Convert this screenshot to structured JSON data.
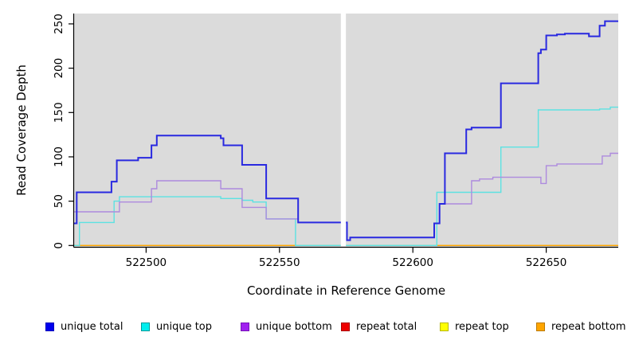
{
  "chart_data": {
    "type": "line",
    "subtype": "step-after-coverage-plot",
    "title": "",
    "xlabel": "Coordinate in Reference Genome",
    "ylabel": "Read Coverage Depth",
    "x_ticks": [
      522500,
      522550,
      522600,
      522650
    ],
    "y_ticks": [
      0,
      50,
      100,
      150,
      200,
      250
    ],
    "xlim": [
      522473,
      522677
    ],
    "ylim": [
      0,
      262
    ],
    "grid": false,
    "panel_bg": "#dbdbdb",
    "masked_region": [
      522573.0,
      522574.9
    ],
    "legend_position": "bottom",
    "draw_order": [
      3,
      4,
      5,
      1,
      2,
      0
    ],
    "series": [
      {
        "name": "unique total",
        "color": "#2929e0",
        "width": 2,
        "points": [
          [
            522473,
            25
          ],
          [
            522474,
            60
          ],
          [
            522487,
            72
          ],
          [
            522489,
            96
          ],
          [
            522497,
            99
          ],
          [
            522502,
            113
          ],
          [
            522504,
            124
          ],
          [
            522528,
            121
          ],
          [
            522529,
            113
          ],
          [
            522536,
            91
          ],
          [
            522545,
            53
          ],
          [
            522557,
            26
          ],
          [
            522575.3,
            6
          ],
          [
            522576.5,
            9
          ],
          [
            522608,
            25
          ],
          [
            522610,
            47
          ],
          [
            522612,
            104
          ],
          [
            522620,
            131
          ],
          [
            522622,
            133
          ],
          [
            522633,
            183
          ],
          [
            522647,
            217
          ],
          [
            522648,
            221
          ],
          [
            522650,
            237
          ],
          [
            522654,
            238
          ],
          [
            522657,
            239
          ],
          [
            522666,
            236
          ],
          [
            522670,
            248
          ],
          [
            522672,
            253
          ]
        ]
      },
      {
        "name": "unique top",
        "color": "#5ce2e2",
        "width": 1.4,
        "points": [
          [
            522473,
            0
          ],
          [
            522475,
            26
          ],
          [
            522488,
            50
          ],
          [
            522490,
            55
          ],
          [
            522528,
            53
          ],
          [
            522536,
            51
          ],
          [
            522540,
            49
          ],
          [
            522545,
            30
          ],
          [
            522556,
            0
          ],
          [
            522609,
            60
          ],
          [
            522633,
            111
          ],
          [
            522647,
            153
          ],
          [
            522670,
            154
          ],
          [
            522674,
            156
          ]
        ]
      },
      {
        "name": "unique bottom",
        "color": "#ad8ade",
        "width": 1.4,
        "points": [
          [
            522473,
            38
          ],
          [
            522490,
            49
          ],
          [
            522502,
            64
          ],
          [
            522504,
            73
          ],
          [
            522528,
            64
          ],
          [
            522536,
            43
          ],
          [
            522545,
            30
          ],
          [
            522557,
            26
          ],
          [
            522575.3,
            6
          ],
          [
            522576.5,
            9
          ],
          [
            522608,
            25
          ],
          [
            522610,
            47
          ],
          [
            522622,
            73
          ],
          [
            522625,
            75
          ],
          [
            522630,
            77
          ],
          [
            522648,
            70
          ],
          [
            522650,
            90
          ],
          [
            522654,
            92
          ],
          [
            522671,
            101
          ],
          [
            522674,
            104
          ]
        ]
      },
      {
        "name": "repeat total",
        "color": "#dd2222",
        "width": 1.4,
        "points": [
          [
            522473,
            0
          ]
        ]
      },
      {
        "name": "repeat top",
        "color": "#eded4f",
        "width": 1.4,
        "points": [
          [
            522473,
            0
          ]
        ]
      },
      {
        "name": "repeat bottom",
        "color": "#ffa500",
        "width": 1.4,
        "points": [
          [
            522473,
            0
          ]
        ]
      }
    ],
    "overlap_blend_segment": {
      "color": "#9cd49c",
      "x": [
        522556,
        522609
      ],
      "value": 0
    }
  },
  "legend": {
    "items": [
      {
        "label": "unique total",
        "color": "#0000ee",
        "border": "#0000bb"
      },
      {
        "label": "unique top",
        "color": "#00eeee",
        "border": "#009999"
      },
      {
        "label": "unique bottom",
        "color": "#a020f0",
        "border": "#7714b8"
      },
      {
        "label": "repeat total",
        "color": "#ee0000",
        "border": "#aa0000"
      },
      {
        "label": "repeat top",
        "color": "#ffff00",
        "border": "#b8b800"
      },
      {
        "label": "repeat bottom",
        "color": "#ffa500",
        "border": "#bb7a00"
      }
    ]
  }
}
